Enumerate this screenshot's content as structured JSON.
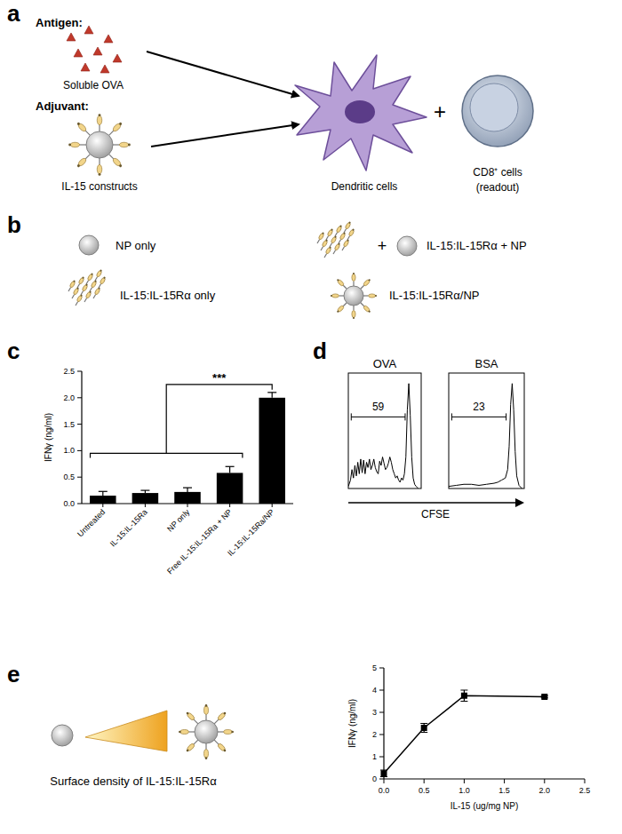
{
  "panel_labels": [
    "a",
    "b",
    "c",
    "d",
    "e"
  ],
  "diagram": {
    "a": {
      "antigen_label": "Antigen:",
      "antigen": "Soluble OVA",
      "adjuvant_label": "Adjuvant:",
      "adjuvant": "IL-15 constructs",
      "cell_1": "Dendritic cells",
      "plus": "+",
      "cell_2": "CD8⁺ cells",
      "cell_2_note": "(readout)"
    },
    "b": {
      "items": [
        "NP only",
        "IL-15:IL-15Rα + NP",
        "IL-15:IL-15Rα only",
        "IL-15:IL-15Rα/NP"
      ],
      "plus": "+"
    },
    "e": {
      "caption": "Surface density of IL-15:IL-15Rα"
    }
  },
  "chart_data": [
    {
      "type": "bar",
      "categories": [
        "Untreated",
        "IL-15:IL-15Ra",
        "NP only",
        "Free IL-15:IL-15Ra + NP",
        "IL-15:IL-15Ra/NP"
      ],
      "values": [
        0.15,
        0.2,
        0.22,
        0.58,
        2.0
      ],
      "errors": [
        0.08,
        0.05,
        0.08,
        0.12,
        0.1
      ],
      "color": "#000000",
      "y_label": "IFNγ (ng/ml)",
      "ylim": [
        0,
        2.5
      ],
      "yticks": [
        {
          "value": 0,
          "label": "0.0"
        },
        {
          "value": 0.5,
          "label": "0.5"
        },
        {
          "value": 1,
          "label": "1.0"
        },
        {
          "value": 1.5,
          "label": "1.5"
        },
        {
          "value": 2,
          "label": "2.0"
        },
        {
          "value": 2.5,
          "label": "2.5"
        }
      ],
      "annotations": [
        {
          "text": "***",
          "from": [
            0,
            3
          ],
          "to": 4
        }
      ]
    },
    {
      "type": "line",
      "title": "OVA",
      "x": [
        0,
        3,
        5,
        7,
        9,
        11,
        13,
        15,
        17,
        19,
        21,
        23,
        25,
        27,
        29,
        31,
        33,
        35,
        37,
        39,
        41,
        43,
        45,
        47,
        49,
        51,
        53,
        55,
        57,
        59,
        61,
        63,
        65,
        67,
        69,
        71,
        73,
        75,
        77,
        79,
        81,
        83,
        85,
        87,
        89,
        91,
        93,
        96
      ],
      "values": [
        2,
        8,
        18,
        10,
        22,
        12,
        25,
        14,
        28,
        15,
        27,
        14,
        25,
        20,
        28,
        18,
        22,
        28,
        20,
        16,
        14,
        26,
        22,
        30,
        24,
        18,
        20,
        24,
        30,
        25,
        18,
        14,
        10,
        12,
        8,
        6,
        10,
        8,
        14,
        30,
        75,
        100,
        70,
        30,
        10,
        4,
        2,
        0
      ],
      "color": "#000000",
      "xlim": [
        0,
        100
      ],
      "ylim": [
        0,
        110
      ],
      "tick_labels": false,
      "x_label": "CFSE",
      "gate_range": [
        4,
        78
      ],
      "gate_percent": 59
    },
    {
      "type": "line",
      "title": "BSA",
      "x": [
        0,
        10,
        20,
        30,
        40,
        50,
        60,
        65,
        70,
        75,
        78,
        80,
        82,
        84,
        86,
        88,
        90,
        93,
        97
      ],
      "values": [
        2,
        3,
        4,
        4,
        3,
        4,
        5,
        6,
        8,
        10,
        18,
        40,
        80,
        100,
        75,
        35,
        12,
        3,
        0
      ],
      "color": "#000000",
      "xlim": [
        0,
        100
      ],
      "ylim": [
        0,
        110
      ],
      "tick_labels": false,
      "gate_range": [
        4,
        76
      ],
      "gate_percent": 23
    },
    {
      "type": "line",
      "x": [
        0,
        0.5,
        1,
        2
      ],
      "values": [
        0.25,
        2.3,
        3.75,
        3.7
      ],
      "errors": [
        0.15,
        0.2,
        0.25,
        0.05
      ],
      "color": "#000000",
      "marker": "square",
      "x_label": "IL-15 (ug/mg NP)",
      "y_label": "IFNγ (ng/ml)",
      "xlim": [
        0,
        2.5
      ],
      "ylim": [
        0,
        5
      ],
      "xticks": [
        {
          "value": 0,
          "label": "0.0"
        },
        {
          "value": 0.5,
          "label": "0.5"
        },
        {
          "value": 1,
          "label": "1.0"
        },
        {
          "value": 1.5,
          "label": "1.5"
        },
        {
          "value": 2,
          "label": "2.0"
        },
        {
          "value": 2.5,
          "label": "2.5"
        }
      ],
      "yticks": [
        0,
        1,
        2,
        3,
        4,
        5
      ]
    }
  ]
}
